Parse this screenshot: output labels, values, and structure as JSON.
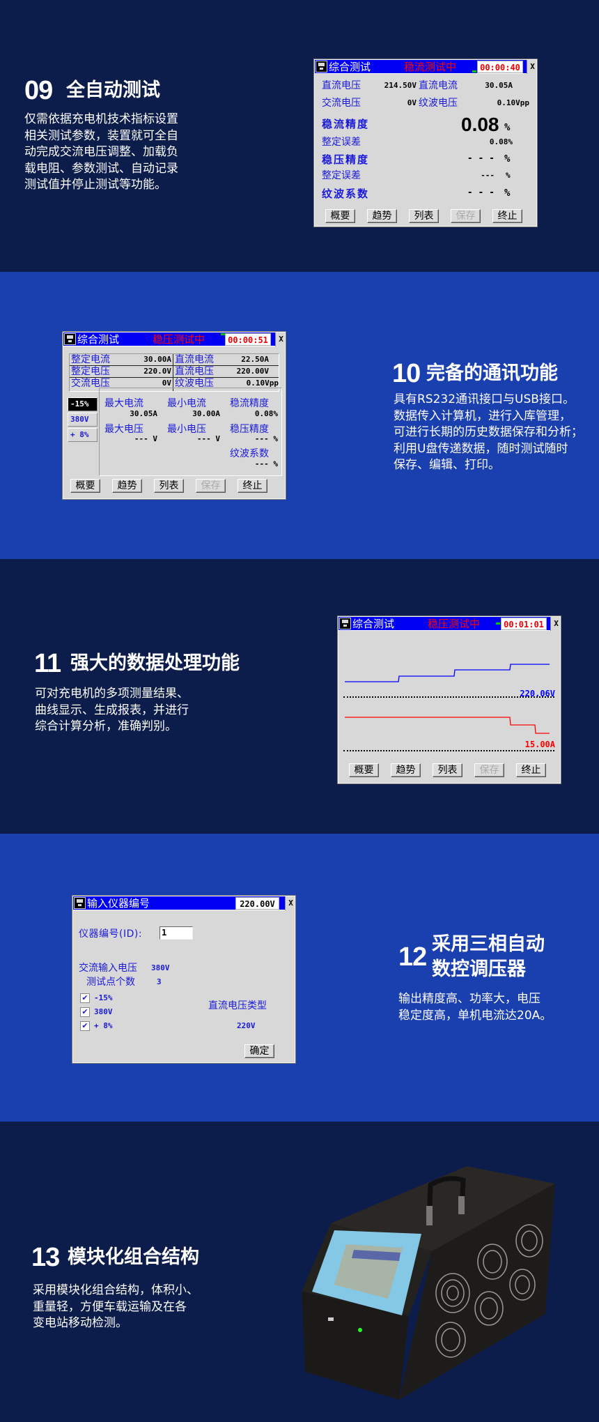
{
  "colors": {
    "dark_bg": "#0c1d4c",
    "blue_bg": "#1a3fae",
    "title_bar": "#0000f2",
    "label_blue": "#1a1ad8",
    "status_red": "#ff0000"
  },
  "common": {
    "buttons": [
      "概要",
      "趋势",
      "列表",
      "保存",
      "终止"
    ],
    "close": "X",
    "window_title": "综合测试"
  },
  "s09": {
    "num": "09",
    "title": "全自动测试",
    "lines": [
      "仅需依据充电机技术指标设置",
      "相关测试参数，装置就可全自",
      "动完成交流电压调整、加载负",
      "载电阻、参数测试、自动记录",
      "测试值并停止测试等功能。"
    ]
  },
  "s10": {
    "num": "10",
    "title": "完备的通讯功能",
    "lines": [
      "具有RS232通讯接口与USB接口。",
      "数据传入计算机，进行入库管理，",
      "可进行长期的历史数据保存和分析；",
      "利用U盘传递数据，随时测试随时",
      "保存、编辑、打印。"
    ]
  },
  "s11": {
    "num": "11",
    "title": "强大的数据处理功能",
    "lines": [
      "可对充电机的多项测量结果、",
      "曲线显示、生成报表，并进行",
      "综合计算分析，准确判别。"
    ]
  },
  "s12": {
    "num": "12",
    "title_lines": [
      "采用三相自动",
      "数控调压器"
    ],
    "lines": [
      "输出精度高、功率大，电压",
      "稳定度高，单机电流达20A。"
    ]
  },
  "s13": {
    "num": "13",
    "title": "模块化组合结构",
    "lines": [
      "采用模块化组合结构，体积小、",
      "重量轻，方便车载运输及在各",
      "变电站移动检测。"
    ]
  },
  "screen1": {
    "status": "稳流测试中",
    "timer": "00:00:40",
    "dc_voltage_label": "直流电压",
    "dc_voltage": "214.50V",
    "dc_current_label": "直流电流",
    "dc_current": "30.05A",
    "ac_voltage_label": "交流电压",
    "ac_voltage": "0V",
    "ripple_voltage_label": "纹波电压",
    "ripple_voltage": "0.10Vpp",
    "current_precision_label": "稳流精度",
    "current_precision": "0.08",
    "pct": "%",
    "setting_error_label": "整定误差",
    "setting_error1": "0.08%",
    "voltage_precision_label": "稳压精度",
    "voltage_precision": "- - -",
    "setting_error2": "---",
    "ripple_coef_label": "纹波系数",
    "ripple_coef": "- - -"
  },
  "screen2": {
    "status": "稳压测试中",
    "timer": "00:00:51",
    "table": [
      [
        "整定电流",
        "30.00A",
        "直流电流",
        "22.50A"
      ],
      [
        "整定电压",
        "220.0V",
        "直流电压",
        "220.00V"
      ],
      [
        "交流电压",
        "0V",
        "纹波电压",
        "0.10Vpp"
      ]
    ],
    "side": [
      "-15%",
      "380V",
      "+ 8%"
    ],
    "max_current_label": "最大电流",
    "max_current": "30.05A",
    "min_current_label": "最小电流",
    "min_current": "30.00A",
    "current_precision_label": "稳流精度",
    "current_precision": "0.08%",
    "max_voltage_label": "最大电压",
    "max_voltage": "--- V",
    "min_voltage_label": "最小电压",
    "min_voltage": "--- V",
    "voltage_precision_label": "稳压精度",
    "voltage_precision": "--- %",
    "ripple_coef_label": "纹波系数",
    "ripple_coef": "--- %"
  },
  "screen3": {
    "status": "稳压测试中",
    "timer": "00:01:01",
    "voltage_readout": "220.06V",
    "current_readout": "15.00A",
    "voltage_color": "#0000ff",
    "current_color": "#ff0000"
  },
  "screen4": {
    "title": "输入仪器编号",
    "value": "220.00V",
    "id_label": "仪器编号(ID):",
    "id_value": "1",
    "ac_input_label": "交流输入电压",
    "ac_input": "380V",
    "points_label": "测试点个数",
    "points": "3",
    "checks": [
      {
        "label": "-15%",
        "checked": true
      },
      {
        "label": "380V",
        "checked": true
      },
      {
        "label": "+ 8%",
        "checked": true
      }
    ],
    "dc_type_label": "直流电压类型",
    "dc_type": "220V",
    "ok": "确定"
  },
  "device": {
    "icon": "battery-load-tester-photo"
  }
}
